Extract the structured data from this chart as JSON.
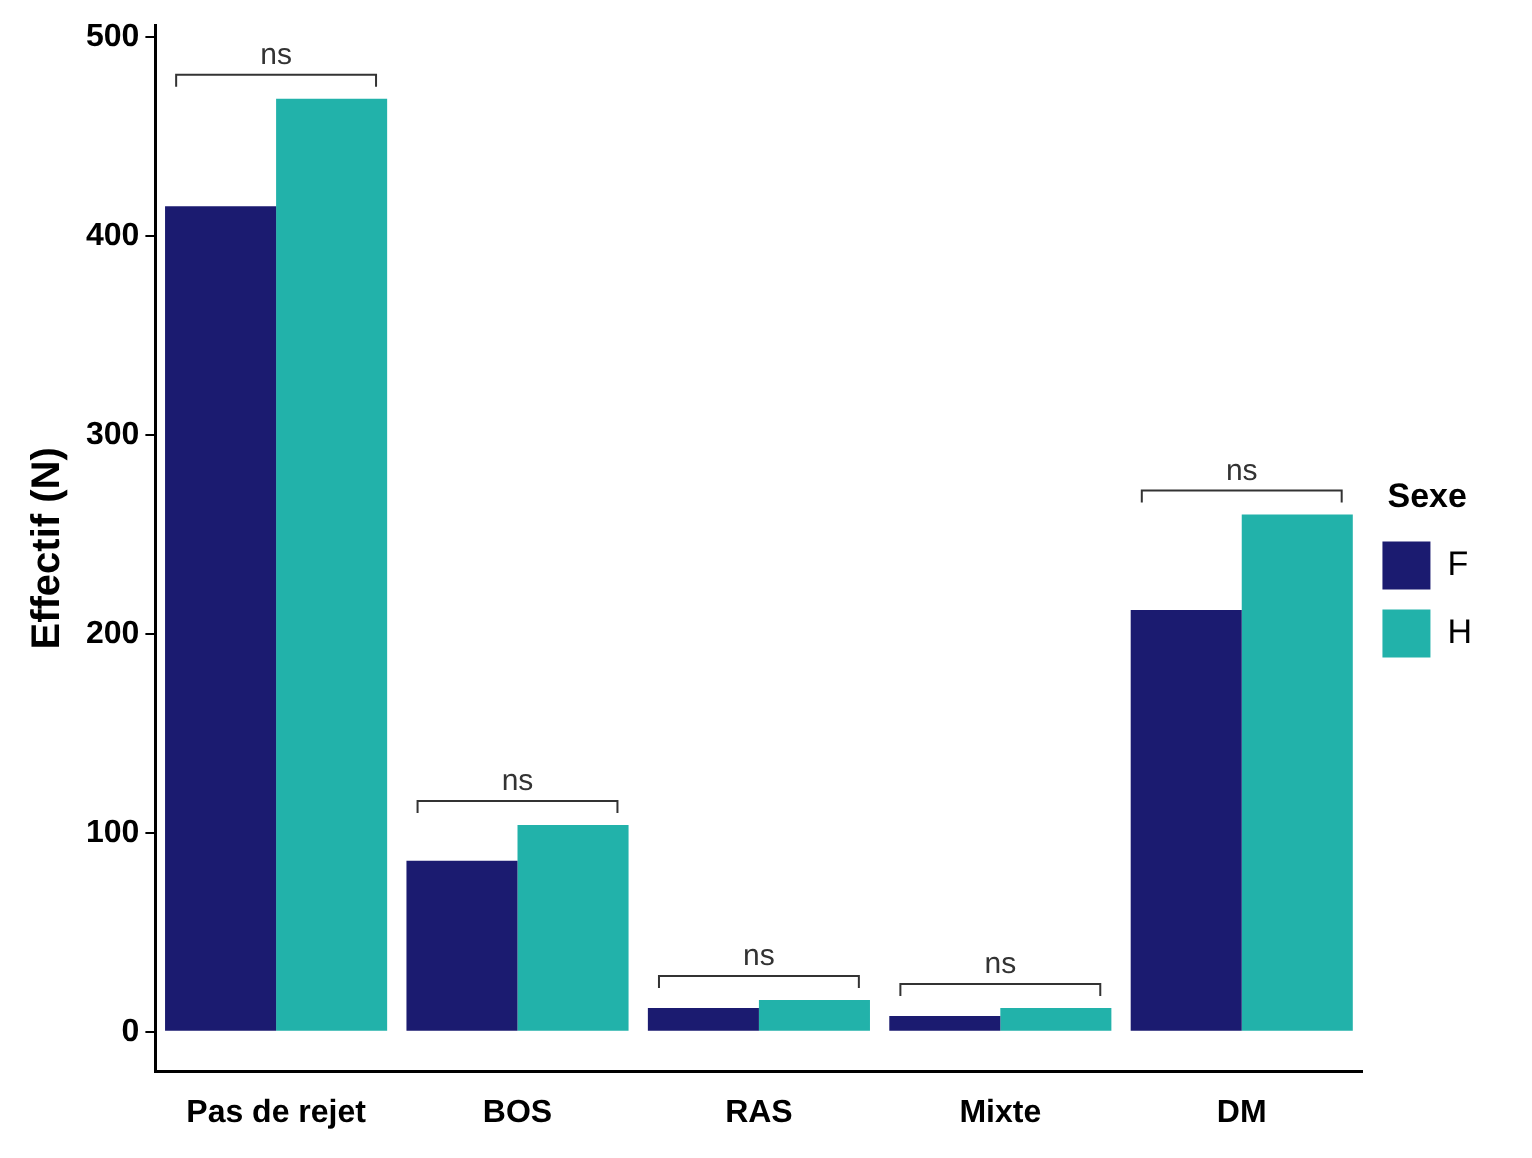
{
  "chart_data": {
    "type": "bar",
    "ylabel": "Effectif (N)",
    "legend_title": "Sexe",
    "categories": [
      "Pas de rejet",
      "BOS",
      "RAS",
      "Mixte",
      "DM"
    ],
    "series": [
      {
        "name": "F",
        "color": "#1b1b70",
        "values": [
          415,
          86,
          12,
          8,
          212
        ]
      },
      {
        "name": "H",
        "color": "#22b2aa",
        "values": [
          469,
          104,
          16,
          12,
          260
        ]
      }
    ],
    "ylim": [
      -20,
      506
    ],
    "yticks": [
      0,
      100,
      200,
      300,
      400,
      500
    ],
    "grid": false,
    "legend": "right",
    "annotations": [
      "ns",
      "ns",
      "ns",
      "ns",
      "ns"
    ]
  }
}
